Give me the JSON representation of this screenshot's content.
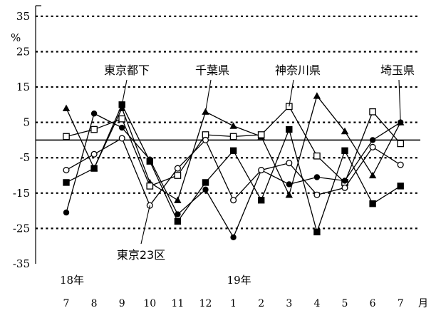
{
  "chart_data": {
    "type": "line",
    "unit": "%",
    "categories": [
      "7",
      "8",
      "9",
      "10",
      "11",
      "12",
      "1",
      "2",
      "3",
      "4",
      "5",
      "6",
      "7"
    ],
    "month_suffix": "月",
    "year_labels": [
      {
        "text": "18年",
        "category_index": 0
      },
      {
        "text": "19年",
        "category_index": 6
      }
    ],
    "y_ticks": [
      35,
      25,
      15,
      5,
      -5,
      -15,
      -25,
      -35
    ],
    "ylim": [
      -35,
      38
    ],
    "grid": "dotted horizontal",
    "series": [
      {
        "name": "東京都下",
        "marker": "filled-square",
        "values": [
          -12,
          -8,
          10,
          -6,
          -23,
          -12,
          -3,
          -17,
          3,
          -26,
          -3,
          -18,
          -13
        ]
      },
      {
        "name": "千葉県",
        "marker": "filled-triangle",
        "values": [
          9,
          -8,
          9,
          -12,
          -17,
          8,
          4,
          1,
          -15.5,
          12.5,
          2.5,
          -10,
          5
        ]
      },
      {
        "name": "神奈川県",
        "marker": "open-square",
        "values": [
          1,
          3,
          6,
          -13,
          -10,
          1.5,
          1,
          1.5,
          9.5,
          -4.5,
          -12,
          8,
          -1
        ]
      },
      {
        "name": "埼玉県",
        "marker": "filled-circle",
        "values": [
          -20.5,
          7.5,
          3.5,
          -5.5,
          -21,
          -14,
          -27.5,
          -8.5,
          -12.5,
          -10.5,
          -11.5,
          0,
          5
        ]
      },
      {
        "name": "東京23区",
        "marker": "open-circle",
        "values": [
          -8.5,
          -4,
          0.5,
          -18.5,
          -8,
          0,
          -17,
          -8.5,
          -6.5,
          -15.5,
          -13.5,
          -2,
          -7
        ]
      }
    ],
    "series_labels": [
      {
        "series": "東京都下",
        "pointer_category_index": 2
      },
      {
        "series": "千葉県",
        "pointer_category_index": 5
      },
      {
        "series": "神奈川県",
        "pointer_category_index": 8
      },
      {
        "series": "埼玉県",
        "pointer_category_index": 12
      },
      {
        "series": "東京23区",
        "pointer_category_index": 3
      }
    ]
  }
}
